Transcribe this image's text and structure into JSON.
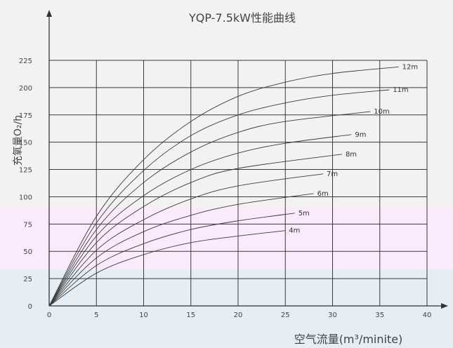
{
  "chart_data": {
    "type": "line",
    "title": "YQP-7.5kW性能曲线",
    "xlabel": "空气流量(m³/minite)",
    "ylabel": "充氧量O₂/h",
    "xlim": [
      0,
      40
    ],
    "ylim": [
      0,
      225
    ],
    "xticks": [
      0,
      5,
      10,
      15,
      20,
      25,
      30,
      35,
      40
    ],
    "yticks": [
      0,
      25,
      50,
      75,
      100,
      125,
      150,
      175,
      200,
      225
    ],
    "grid": true,
    "series": [
      {
        "name": "4m",
        "x": [
          0,
          5,
          10,
          15,
          20,
          25
        ],
        "y": [
          0,
          30,
          47,
          58,
          64,
          69
        ]
      },
      {
        "name": "5m",
        "x": [
          0,
          5,
          10,
          15,
          20,
          26
        ],
        "y": [
          0,
          37,
          57,
          70,
          78,
          85
        ]
      },
      {
        "name": "6m",
        "x": [
          0,
          5,
          10,
          15,
          20,
          28
        ],
        "y": [
          0,
          44,
          68,
          83,
          93,
          103
        ]
      },
      {
        "name": "7m",
        "x": [
          0,
          5,
          10,
          15,
          20,
          29
        ],
        "y": [
          0,
          51,
          79,
          98,
          110,
          121
        ]
      },
      {
        "name": "8m",
        "x": [
          0,
          5,
          10,
          15,
          20,
          31
        ],
        "y": [
          0,
          58,
          91,
          113,
          126,
          139
        ]
      },
      {
        "name": "9m",
        "x": [
          0,
          5,
          10,
          15,
          20,
          25,
          32
        ],
        "y": [
          0,
          64,
          101,
          125,
          140,
          149,
          157
        ]
      },
      {
        "name": "10m",
        "x": [
          0,
          5,
          10,
          15,
          20,
          25,
          34
        ],
        "y": [
          0,
          70,
          113,
          141,
          159,
          169,
          178
        ]
      },
      {
        "name": "11m",
        "x": [
          0,
          5,
          10,
          15,
          20,
          25,
          30,
          36
        ],
        "y": [
          0,
          76,
          124,
          156,
          175,
          186,
          193,
          198
        ]
      },
      {
        "name": "12m",
        "x": [
          0,
          5,
          10,
          15,
          20,
          25,
          30,
          37
        ],
        "y": [
          0,
          82,
          134,
          169,
          192,
          205,
          213,
          219
        ]
      }
    ]
  }
}
